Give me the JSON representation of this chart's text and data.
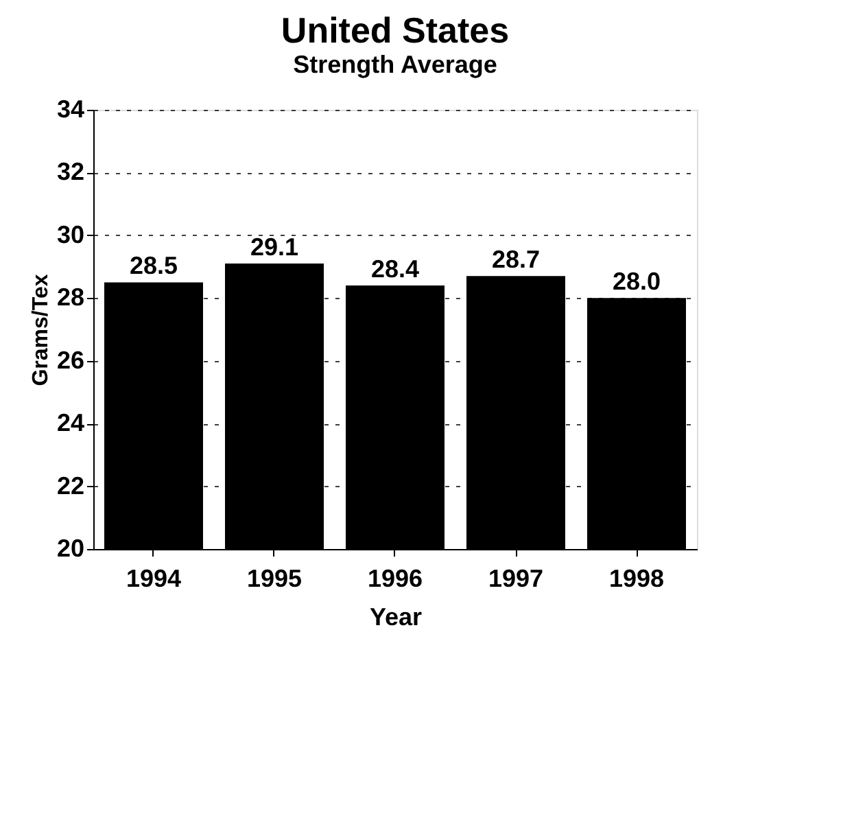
{
  "chart_data": {
    "type": "bar",
    "title": "United States",
    "subtitle": "Strength Average",
    "xlabel": "Year",
    "ylabel": "Grams/Tex",
    "categories": [
      "1994",
      "1995",
      "1996",
      "1997",
      "1998"
    ],
    "values": [
      28.5,
      29.1,
      28.4,
      28.7,
      28.0
    ],
    "value_labels": [
      "28.5",
      "29.1",
      "28.4",
      "28.7",
      "28.0"
    ],
    "color": "#000000",
    "ylim": [
      20,
      34
    ],
    "yticks": [
      20,
      22,
      24,
      26,
      28,
      30,
      32,
      34
    ],
    "grid": "y"
  }
}
